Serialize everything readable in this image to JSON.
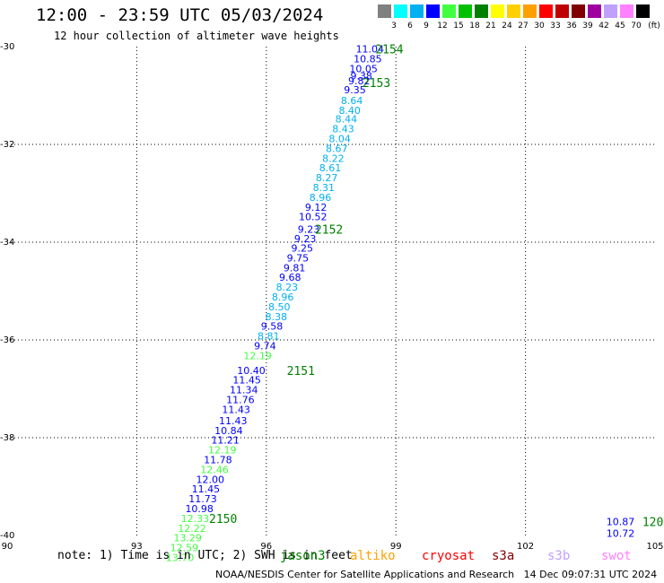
{
  "title": "12:00 - 23:59 UTC 05/03/2024",
  "subtitle": "12 hour collection of altimeter wave heights",
  "colorbar": {
    "unit": "(ft)",
    "colors": [
      "#808080",
      "#00ffff",
      "#00b0f0",
      "#0000ff",
      "#40ff40",
      "#00c000",
      "#008000",
      "#ffff00",
      "#ffd000",
      "#ffa000",
      "#ff0000",
      "#c00000",
      "#800000",
      "#a000a0",
      "#c0a0ff",
      "#ff80ff",
      "#000000"
    ],
    "labels": [
      "3",
      "6",
      "9",
      "12",
      "15",
      "18",
      "21",
      "24",
      "27",
      "30",
      "33",
      "36",
      "39",
      "42",
      "45",
      "70"
    ]
  },
  "note": "note: 1) Time is in UTC; 2) SWH is in feet",
  "satellites": [
    {
      "name": "jason3",
      "color": "#008000"
    },
    {
      "name": "altiko",
      "color": "#ffa000"
    },
    {
      "name": "cryosat",
      "color": "#ff0000"
    },
    {
      "name": "s3a",
      "color": "#800000"
    },
    {
      "name": "s3b",
      "color": "#c0a0ff"
    },
    {
      "name": "swot",
      "color": "#ff80ff"
    }
  ],
  "footer": "NOAA/NESDIS Center for Satellite Applications and Research   14 Dec 09:07:31 UTC 2024",
  "chart_data": {
    "type": "scatter",
    "xlim": [
      90,
      105
    ],
    "ylim": [
      -40,
      -30
    ],
    "xticks": [
      "90",
      "93",
      "96",
      "99",
      "102",
      "105"
    ],
    "yticks": [
      "-30",
      "-32",
      "-34",
      "-36",
      "-38",
      "-40"
    ],
    "grid": true,
    "points": [
      {
        "lon": 98.4,
        "lat": -30.05,
        "label": "11.04",
        "color": "#0000ff"
      },
      {
        "lon": 98.35,
        "lat": -30.25,
        "label": "10.85",
        "color": "#0000ff"
      },
      {
        "lon": 98.25,
        "lat": -30.45,
        "label": "10.05",
        "color": "#0000ff"
      },
      {
        "lon": 98.2,
        "lat": -30.6,
        "label": "9.38",
        "color": "#0000ff"
      },
      {
        "lon": 98.15,
        "lat": -30.7,
        "label": "9.82",
        "color": "#0000ff"
      },
      {
        "lon": 98.05,
        "lat": -30.88,
        "label": "9.35",
        "color": "#0000ff"
      },
      {
        "lon": 97.98,
        "lat": -31.1,
        "label": "8.64",
        "color": "#00b0f0"
      },
      {
        "lon": 97.93,
        "lat": -31.3,
        "label": "8.40",
        "color": "#00b0f0"
      },
      {
        "lon": 97.85,
        "lat": -31.48,
        "label": "8.44",
        "color": "#00b0f0"
      },
      {
        "lon": 97.78,
        "lat": -31.68,
        "label": "8.43",
        "color": "#00b0f0"
      },
      {
        "lon": 97.7,
        "lat": -31.88,
        "label": "8.04",
        "color": "#00b0f0"
      },
      {
        "lon": 97.63,
        "lat": -32.08,
        "label": "8.67",
        "color": "#00b0f0"
      },
      {
        "lon": 97.55,
        "lat": -32.28,
        "label": "8.22",
        "color": "#00b0f0"
      },
      {
        "lon": 97.48,
        "lat": -32.48,
        "label": "8.61",
        "color": "#00b0f0"
      },
      {
        "lon": 97.4,
        "lat": -32.68,
        "label": "8.27",
        "color": "#00b0f0"
      },
      {
        "lon": 97.33,
        "lat": -32.88,
        "label": "8.31",
        "color": "#00b0f0"
      },
      {
        "lon": 97.25,
        "lat": -33.08,
        "label": "8.96",
        "color": "#00b0f0"
      },
      {
        "lon": 97.15,
        "lat": -33.28,
        "label": "9.12",
        "color": "#0000ff"
      },
      {
        "lon": 97.08,
        "lat": -33.48,
        "label": "10.52",
        "color": "#0000ff"
      },
      {
        "lon": 96.98,
        "lat": -33.73,
        "label": "9.23",
        "color": "#0000ff"
      },
      {
        "lon": 96.9,
        "lat": -33.93,
        "label": "9.23",
        "color": "#0000ff"
      },
      {
        "lon": 96.83,
        "lat": -34.12,
        "label": "9.25",
        "color": "#0000ff"
      },
      {
        "lon": 96.73,
        "lat": -34.32,
        "label": "9.75",
        "color": "#0000ff"
      },
      {
        "lon": 96.65,
        "lat": -34.52,
        "label": "9.81",
        "color": "#0000ff"
      },
      {
        "lon": 96.55,
        "lat": -34.72,
        "label": "9.68",
        "color": "#0000ff"
      },
      {
        "lon": 96.48,
        "lat": -34.92,
        "label": "8.23",
        "color": "#00b0f0"
      },
      {
        "lon": 96.38,
        "lat": -35.12,
        "label": "8.96",
        "color": "#00b0f0"
      },
      {
        "lon": 96.3,
        "lat": -35.32,
        "label": "8.50",
        "color": "#00b0f0"
      },
      {
        "lon": 96.23,
        "lat": -35.52,
        "label": "8.38",
        "color": "#00b0f0"
      },
      {
        "lon": 96.13,
        "lat": -35.72,
        "label": "9.58",
        "color": "#0000ff"
      },
      {
        "lon": 96.05,
        "lat": -35.92,
        "label": "8.81",
        "color": "#00b0f0"
      },
      {
        "lon": 95.97,
        "lat": -36.12,
        "label": "9.74",
        "color": "#0000ff"
      },
      {
        "lon": 95.8,
        "lat": -36.32,
        "label": "12.19",
        "color": "#40ff40"
      },
      {
        "lon": 95.65,
        "lat": -36.62,
        "label": "10.40",
        "color": "#0000ff"
      },
      {
        "lon": 95.55,
        "lat": -36.82,
        "label": "11.45",
        "color": "#0000ff"
      },
      {
        "lon": 95.48,
        "lat": -37.02,
        "label": "11.34",
        "color": "#0000ff"
      },
      {
        "lon": 95.4,
        "lat": -37.22,
        "label": "11.76",
        "color": "#0000ff"
      },
      {
        "lon": 95.3,
        "lat": -37.42,
        "label": "11.43",
        "color": "#0000ff"
      },
      {
        "lon": 95.23,
        "lat": -37.65,
        "label": "11.43",
        "color": "#0000ff"
      },
      {
        "lon": 95.13,
        "lat": -37.85,
        "label": "10.84",
        "color": "#0000ff"
      },
      {
        "lon": 95.05,
        "lat": -38.05,
        "label": "11.21",
        "color": "#0000ff"
      },
      {
        "lon": 94.98,
        "lat": -38.25,
        "label": "12.19",
        "color": "#40ff40"
      },
      {
        "lon": 94.88,
        "lat": -38.45,
        "label": "11.78",
        "color": "#0000ff"
      },
      {
        "lon": 94.8,
        "lat": -38.65,
        "label": "12.46",
        "color": "#40ff40"
      },
      {
        "lon": 94.7,
        "lat": -38.85,
        "label": "12.00",
        "color": "#0000ff"
      },
      {
        "lon": 94.6,
        "lat": -39.05,
        "label": "11.45",
        "color": "#0000ff"
      },
      {
        "lon": 94.53,
        "lat": -39.25,
        "label": "11.73",
        "color": "#0000ff"
      },
      {
        "lon": 94.45,
        "lat": -39.45,
        "label": "10.98",
        "color": "#0000ff"
      },
      {
        "lon": 94.35,
        "lat": -39.65,
        "label": "12.33",
        "color": "#40ff40"
      },
      {
        "lon": 94.28,
        "lat": -39.85,
        "label": "12.22",
        "color": "#40ff40"
      },
      {
        "lon": 94.18,
        "lat": -40.05,
        "label": "13.29",
        "color": "#40ff40"
      },
      {
        "lon": 94.1,
        "lat": -40.25,
        "label": "12.59",
        "color": "#40ff40"
      },
      {
        "lon": 94.0,
        "lat": -40.45,
        "label": "13.70",
        "color": "#40ff40"
      },
      {
        "lon": 104.2,
        "lat": -39.72,
        "label": "10.87",
        "color": "#0000ff"
      },
      {
        "lon": 104.2,
        "lat": -39.95,
        "label": "10.72",
        "color": "#0000ff"
      }
    ],
    "annotations": [
      {
        "lon": 98.85,
        "lat": -30.05,
        "text": "2154",
        "color": "#008000"
      },
      {
        "lon": 98.55,
        "lat": -30.73,
        "text": "2153",
        "color": "#008000"
      },
      {
        "lon": 97.45,
        "lat": -33.73,
        "text": "2152",
        "color": "#008000"
      },
      {
        "lon": 96.8,
        "lat": -36.62,
        "text": "2151",
        "color": "#008000"
      },
      {
        "lon": 95.0,
        "lat": -39.65,
        "text": "2150",
        "color": "#008000"
      },
      {
        "lon": 104.95,
        "lat": -39.72,
        "text": "120",
        "color": "#008000"
      }
    ]
  }
}
